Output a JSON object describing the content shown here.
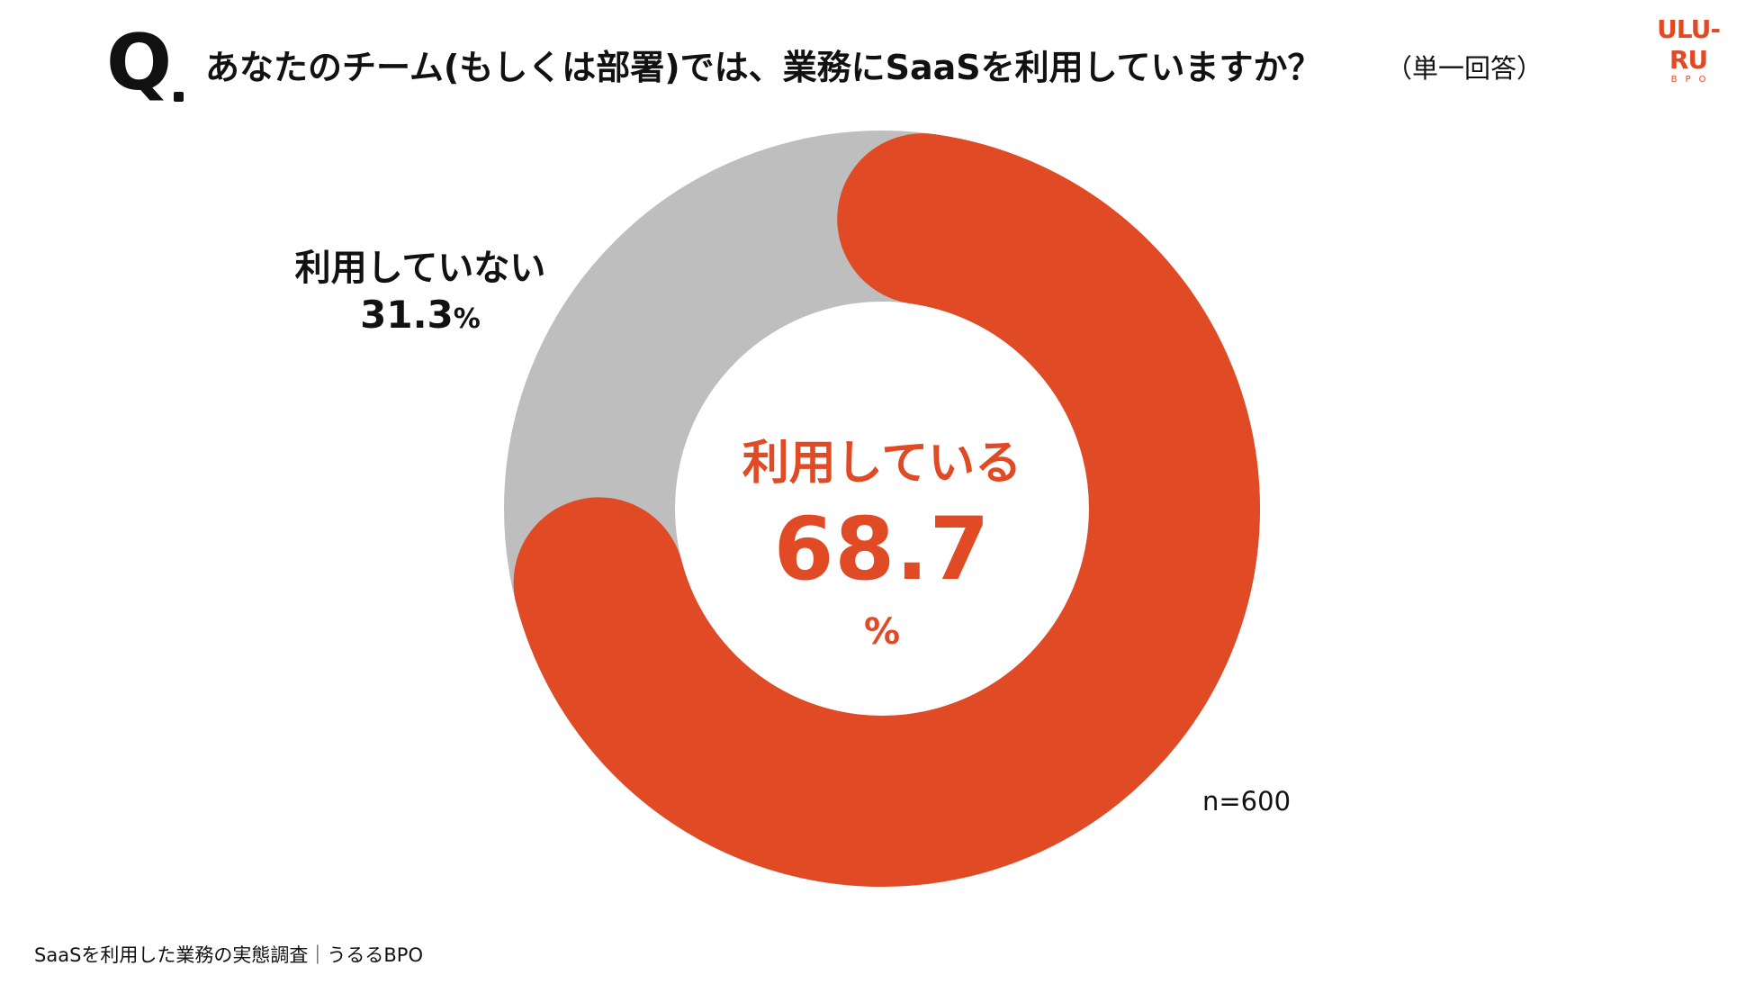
{
  "header": {
    "q_mark": "Q",
    "question": "あなたのチーム(もしくは部署)では、業務にSaaSを利用していますか？",
    "question_note": "（単一回答）"
  },
  "logo": {
    "main": "ULU-RU",
    "sub": "BPO"
  },
  "colors": {
    "using": "#e04a25",
    "not_using": "#bebebe",
    "background": "#ffffff"
  },
  "chart_data": {
    "type": "pie",
    "variant": "donut",
    "title": "",
    "categories": [
      "利用している",
      "利用していない"
    ],
    "values": [
      68.7,
      31.3
    ],
    "unit": "%",
    "sample_size": "n=600",
    "labels": {
      "using": {
        "name": "利用している",
        "value": "68.7",
        "unit": "%"
      },
      "not_using": {
        "name": "利用していない",
        "value_main": "31.3",
        "unit": "%"
      }
    }
  },
  "footer": {
    "text": "SaaSを利用した業務の実態調査｜うるるBPO"
  }
}
